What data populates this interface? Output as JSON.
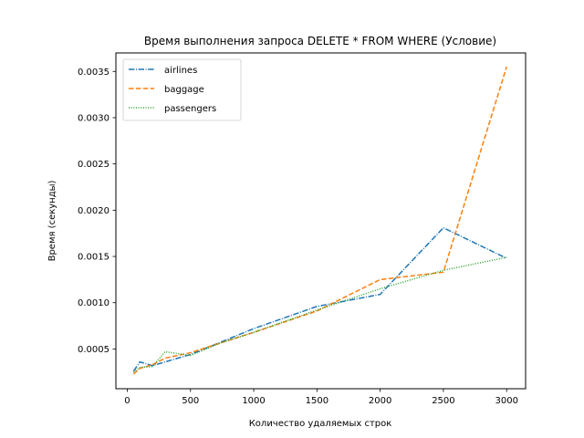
{
  "chart_data": {
    "type": "line",
    "title": "Время выполнения запроса DELETE * FROM WHERE (Условие)",
    "xlabel": "Количество удаляемых строк",
    "ylabel": "Время (секунды)",
    "xlim": [
      -90,
      3150
    ],
    "ylim": [
      7e-05,
      0.0037
    ],
    "xticks": [
      0,
      500,
      1000,
      1500,
      2000,
      2500,
      3000
    ],
    "xtick_labels": [
      "0",
      "500",
      "1000",
      "1500",
      "2000",
      "2500",
      "3000"
    ],
    "yticks": [
      0.0005,
      0.001,
      0.0015,
      0.002,
      0.0025,
      0.003,
      0.0035
    ],
    "ytick_labels": [
      "0.0005",
      "0.0010",
      "0.0015",
      "0.0020",
      "0.0025",
      "0.0030",
      "0.0035"
    ],
    "grid": false,
    "legend_position": "top-left",
    "series": [
      {
        "name": "airlines",
        "color": "#1f77b4",
        "style": "dashdot",
        "x": [
          50,
          100,
          200,
          300,
          400,
          500,
          750,
          1000,
          1500,
          2000,
          2500,
          3000
        ],
        "y": [
          0.00026,
          0.00036,
          0.00032,
          0.00036,
          0.0004,
          0.00044,
          0.00058,
          0.00072,
          0.00096,
          0.00109,
          0.00181,
          0.00148
        ]
      },
      {
        "name": "baggage",
        "color": "#ff7f0e",
        "style": "dashed",
        "x": [
          50,
          100,
          200,
          300,
          400,
          500,
          750,
          1000,
          1500,
          2000,
          2500,
          3000
        ],
        "y": [
          0.00023,
          0.00029,
          0.00033,
          0.0004,
          0.00043,
          0.00046,
          0.00057,
          0.00068,
          0.00091,
          0.00125,
          0.00133,
          0.00355
        ]
      },
      {
        "name": "passengers",
        "color": "#2ca02c",
        "style": "dotted",
        "x": [
          50,
          100,
          200,
          300,
          400,
          500,
          750,
          1000,
          1500,
          2000,
          2500,
          3000
        ],
        "y": [
          0.00025,
          0.0003,
          0.00031,
          0.00047,
          0.00045,
          0.00043,
          0.00057,
          0.00068,
          0.00092,
          0.00115,
          0.00135,
          0.00149
        ]
      }
    ]
  }
}
